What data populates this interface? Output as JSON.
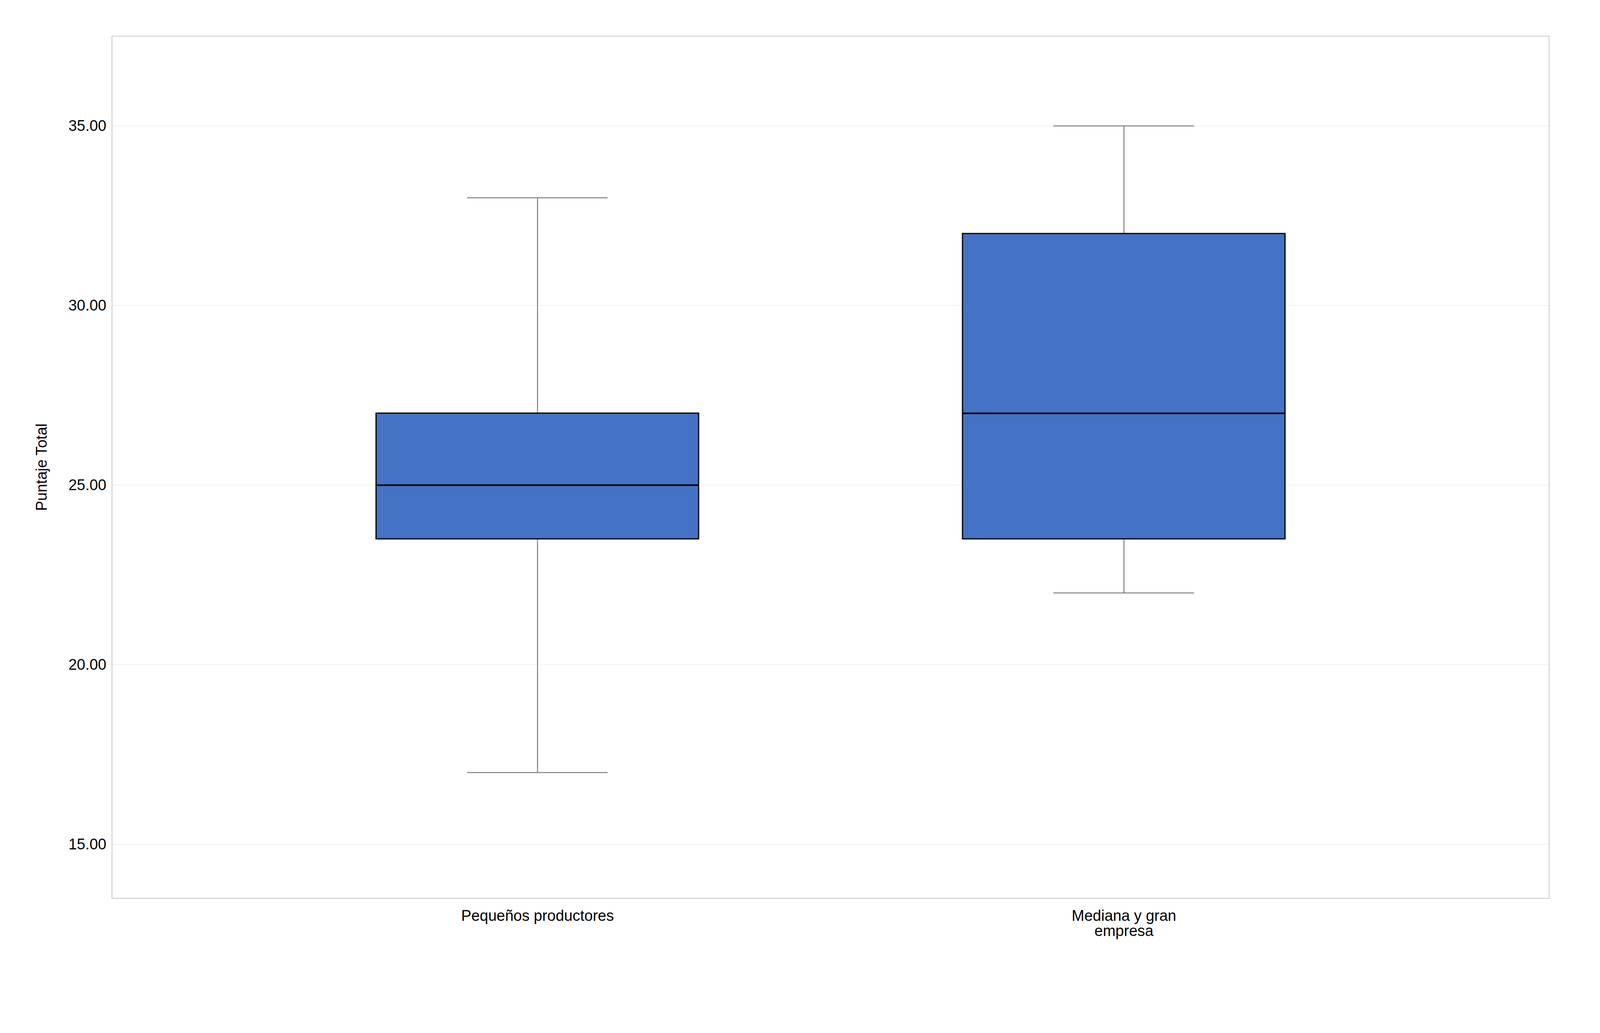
{
  "chart_data": {
    "type": "box",
    "categories": [
      "Pequeños productores",
      "Mediana y gran\nempresa"
    ],
    "whisker_low": [
      17.0,
      22.0
    ],
    "q1": [
      23.5,
      23.5
    ],
    "median": [
      25.0,
      27.0
    ],
    "q3": [
      27.0,
      32.0
    ],
    "whisker_high": [
      33.0,
      35.0
    ],
    "color": "#4472C4",
    "ylabel": "Puntaje Total",
    "ylim": [
      13.5,
      37.5
    ],
    "yticks": [
      {
        "value": 15.0,
        "label": "15.00"
      },
      {
        "value": 20.0,
        "label": "20.00"
      },
      {
        "value": 25.0,
        "label": "25.00"
      },
      {
        "value": 30.0,
        "label": "30.00"
      },
      {
        "value": 35.0,
        "label": "35.00"
      }
    ],
    "grid": true
  }
}
